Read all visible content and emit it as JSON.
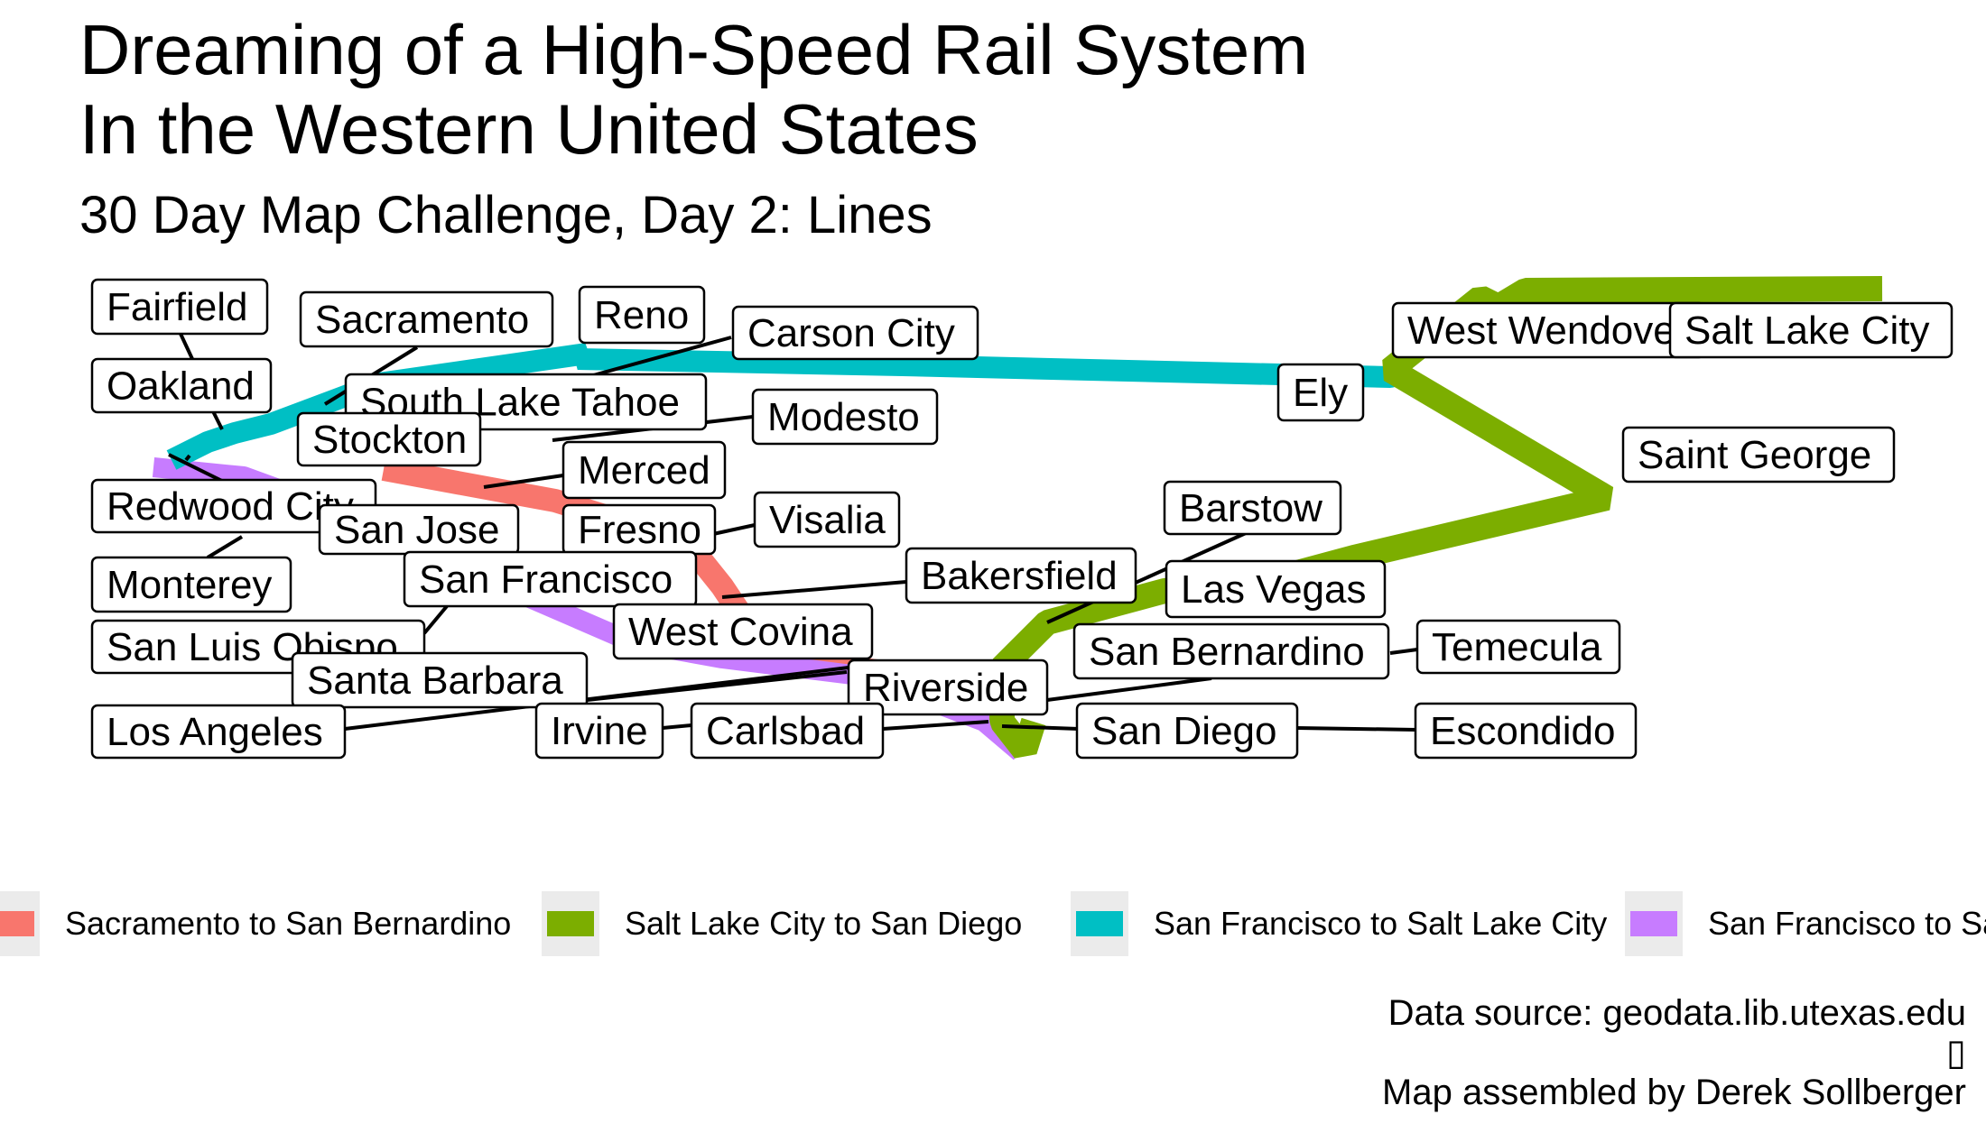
{
  "title_lines": [
    "Dreaming of a High-Speed Rail System",
    "In the Western United States"
  ],
  "subtitle": "30 Day Map Challenge, Day 2: Lines",
  "routes": [
    {
      "name": "Sacramento to San Bernardino",
      "color": "#F8766D"
    },
    {
      "name": "Salt Lake City to San Diego",
      "color": "#7CAE00"
    },
    {
      "name": "San Francisco to Salt Lake City",
      "color": "#00BFC4"
    },
    {
      "name": "San Francisco to Sa",
      "color": "#C77CFF"
    }
  ],
  "cities": [
    "Fairfield",
    "Sacramento",
    "Reno",
    "Carson City",
    "Oakland",
    "South Lake Tahoe",
    "Stockton",
    "Modesto",
    "Merced",
    "Redwood City",
    "San Jose",
    "Fresno",
    "Visalia",
    "Monterey",
    "San Francisco",
    "Bakersfield",
    "West Covina",
    "San Luis Obispo",
    "Santa Barbara",
    "Riverside",
    "Los Angeles",
    "Irvine",
    "Carlsbad",
    "San Diego",
    "Escondido",
    "San Bernardino",
    "Temecula",
    "Las Vegas",
    "Barstow",
    "Ely",
    "West Wendover",
    "Salt Lake City",
    "Saint George"
  ],
  "caption": {
    "source": "Data source: geodata.lib.utexas.edu",
    "glyph": "▯",
    "credit": "Map assembled by Derek Sollberger"
  }
}
